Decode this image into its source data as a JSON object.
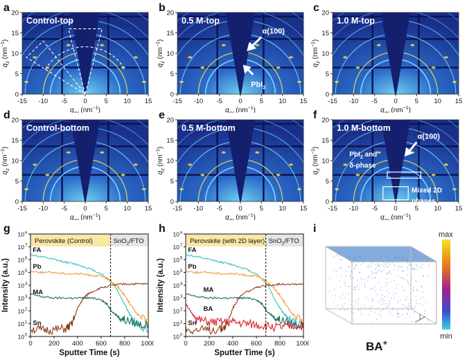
{
  "panel_labels": [
    "a",
    "b",
    "c",
    "d",
    "e",
    "f",
    "g",
    "h",
    "i"
  ],
  "giwaxs": {
    "x_ticks": [
      "-15",
      "-10",
      "-5",
      "0",
      "5",
      "10",
      "15"
    ],
    "y_ticks": [
      "0",
      "5",
      "10",
      "15",
      "20"
    ],
    "xlabel_main": "q",
    "xlabel_sub": "xy",
    "xlabel_unit": " (nm",
    "xlabel_unit_sup": "−1",
    "xlabel_close": ")",
    "ylabel_main": "q",
    "ylabel_sub": "z",
    "ylabel_unit": " (nm",
    "ylabel_unit_sup": "−1",
    "ylabel_close": ")",
    "panels": [
      {
        "title": "Control-top"
      },
      {
        "title": "0.5 M-top"
      },
      {
        "title": "1.0 M-top"
      },
      {
        "title": "Control-bottom"
      },
      {
        "title": "0.5 M-bottom"
      },
      {
        "title": "1.0 M-bottom"
      }
    ],
    "annotations": {
      "b_alpha": "α(100)",
      "b_pbi_main": "PbI",
      "b_pbi_sub": "2",
      "f_alpha": "α(100)",
      "f_pbi_line1_main": "PbI",
      "f_pbi_line1_sub": "2",
      "f_pbi_line1_rest": " and",
      "f_pbi_line2": "δ-phase",
      "f_mixed_line1": "Mixed 2D",
      "f_mixed_line2": "phases"
    }
  },
  "tof": {
    "x_ticks": [
      "0",
      "200",
      "400",
      "600",
      "800",
      "1000"
    ],
    "y_ticks_exp": [
      "0",
      "1",
      "2",
      "3",
      "4",
      "5",
      "6",
      "7",
      "8"
    ],
    "y_tick_base": "10",
    "xlabel": "Sputter Time (s)",
    "ylabel": "Intensity (a.u.)",
    "substrate_main": "SnO",
    "substrate_sub": "2",
    "substrate_rest": "/FTO",
    "panel_g_region": "Perovskite (Control)",
    "panel_h_region": "Perovskite (with 2D layer)",
    "species_g": [
      "FA",
      "Pb",
      "MA",
      "Sn"
    ],
    "species_h": [
      "FA",
      "Pb",
      "MA",
      "BA",
      "Sn"
    ]
  },
  "render3d": {
    "colorbar_max": "max",
    "colorbar_min": "min",
    "ion_main": "BA",
    "ion_sup": "+"
  },
  "colors": {
    "giwaxs_bg": "#1a2f8a",
    "fa": "#3ec1c1",
    "pb": "#f29a3a",
    "ma": "#1e6e5a",
    "sn": "#8b3a12",
    "ba": "#d8242a",
    "substrate": "#8b4a2a",
    "perovskite_band": "#fbe7a6",
    "substrate_band": "#e5e5e5"
  },
  "chart_data": [
    {
      "type": "heatmap",
      "panel": "a",
      "title": "Control-top",
      "xlim": [
        -15,
        15
      ],
      "ylim": [
        0,
        20
      ]
    },
    {
      "type": "heatmap",
      "panel": "b",
      "title": "0.5 M-top",
      "xlim": [
        -15,
        15
      ],
      "ylim": [
        0,
        20
      ]
    },
    {
      "type": "heatmap",
      "panel": "c",
      "title": "1.0 M-top",
      "xlim": [
        -15,
        15
      ],
      "ylim": [
        0,
        20
      ]
    },
    {
      "type": "heatmap",
      "panel": "d",
      "title": "Control-bottom",
      "xlim": [
        -15,
        15
      ],
      "ylim": [
        0,
        20
      ]
    },
    {
      "type": "heatmap",
      "panel": "e",
      "title": "0.5 M-bottom",
      "xlim": [
        -15,
        15
      ],
      "ylim": [
        0,
        20
      ]
    },
    {
      "type": "heatmap",
      "panel": "f",
      "title": "1.0 M-bottom",
      "xlim": [
        -15,
        15
      ],
      "ylim": [
        0,
        20
      ]
    },
    {
      "type": "line",
      "panel": "g",
      "xlabel": "Sputter Time (s)",
      "ylabel": "Intensity (a.u.)",
      "xlim": [
        0,
        1000
      ],
      "ylim_log10": [
        0,
        8
      ],
      "interface_x": 680,
      "series": [
        {
          "name": "FA",
          "color": "#3ec1c1",
          "x": [
            0,
            100,
            200,
            300,
            400,
            500,
            600,
            700,
            750,
            800,
            850,
            900,
            1000
          ],
          "log10_y": [
            6.4,
            6.2,
            6.0,
            5.8,
            5.6,
            5.3,
            4.9,
            4.2,
            3.4,
            2.5,
            1.6,
            1.0,
            0.5
          ]
        },
        {
          "name": "Pb",
          "color": "#f29a3a",
          "x": [
            0,
            100,
            200,
            300,
            400,
            500,
            600,
            650,
            700,
            750,
            800,
            850,
            900,
            1000
          ],
          "log10_y": [
            5.1,
            5.0,
            5.0,
            4.9,
            4.9,
            4.8,
            4.7,
            4.5,
            4.2,
            3.8,
            3.2,
            2.5,
            1.8,
            1.0
          ]
        },
        {
          "name": "MA",
          "color": "#1e6e5a",
          "x": [
            0,
            100,
            200,
            300,
            400,
            500,
            600,
            650,
            700,
            750,
            800,
            900,
            1000
          ],
          "log10_y": [
            3.3,
            3.1,
            3.0,
            3.0,
            3.0,
            3.0,
            2.9,
            2.5,
            1.9,
            1.5,
            1.3,
            1.0,
            0.8
          ]
        },
        {
          "name": "Sn",
          "color": "#8b3a12",
          "x": [
            0,
            100,
            200,
            300,
            350,
            400,
            450,
            500,
            600,
            700,
            800,
            900,
            1000
          ],
          "log10_y": [
            0.6,
            0.5,
            0.5,
            0.6,
            0.9,
            2.2,
            3.0,
            3.4,
            3.8,
            4.0,
            4.1,
            4.1,
            4.1
          ]
        }
      ]
    },
    {
      "type": "line",
      "panel": "h",
      "xlabel": "Sputter Time (s)",
      "ylabel": "Intensity (a.u.)",
      "xlim": [
        0,
        1000
      ],
      "ylim_log10": [
        0,
        8
      ],
      "interface_x": 680,
      "series": [
        {
          "name": "FA",
          "color": "#3ec1c1",
          "x": [
            0,
            100,
            200,
            300,
            400,
            500,
            600,
            700,
            750,
            800,
            850,
            900,
            1000
          ],
          "log10_y": [
            6.4,
            6.2,
            6.0,
            5.8,
            5.6,
            5.3,
            4.9,
            4.0,
            3.0,
            2.2,
            1.6,
            1.2,
            0.9
          ]
        },
        {
          "name": "Pb",
          "color": "#f29a3a",
          "x": [
            0,
            100,
            200,
            300,
            400,
            500,
            600,
            650,
            700,
            750,
            800,
            850,
            900,
            1000
          ],
          "log10_y": [
            5.1,
            5.0,
            5.0,
            4.9,
            4.9,
            4.8,
            4.7,
            4.5,
            4.2,
            3.8,
            3.2,
            2.5,
            1.8,
            1.0
          ]
        },
        {
          "name": "MA",
          "color": "#1e6e5a",
          "x": [
            0,
            100,
            200,
            300,
            400,
            500,
            600,
            650,
            700,
            750,
            800,
            900,
            1000
          ],
          "log10_y": [
            3.3,
            3.1,
            3.0,
            3.0,
            3.0,
            3.0,
            2.9,
            2.5,
            1.9,
            1.5,
            1.3,
            1.0,
            0.8
          ]
        },
        {
          "name": "BA",
          "color": "#d8242a",
          "x": [
            0,
            50,
            100,
            200,
            300,
            400,
            500,
            600,
            700,
            800,
            900,
            1000
          ],
          "log10_y": [
            2.6,
            1.8,
            1.3,
            1.1,
            1.1,
            1.1,
            1.0,
            0.9,
            0.8,
            0.7,
            0.8,
            0.8
          ]
        },
        {
          "name": "Sn",
          "color": "#8b3a12",
          "x": [
            0,
            100,
            200,
            300,
            350,
            400,
            450,
            500,
            600,
            700,
            800,
            900,
            1000
          ],
          "log10_y": [
            0.6,
            0.5,
            0.5,
            0.6,
            0.9,
            2.2,
            3.0,
            3.4,
            3.8,
            4.0,
            4.1,
            4.1,
            4.1
          ]
        }
      ]
    }
  ]
}
